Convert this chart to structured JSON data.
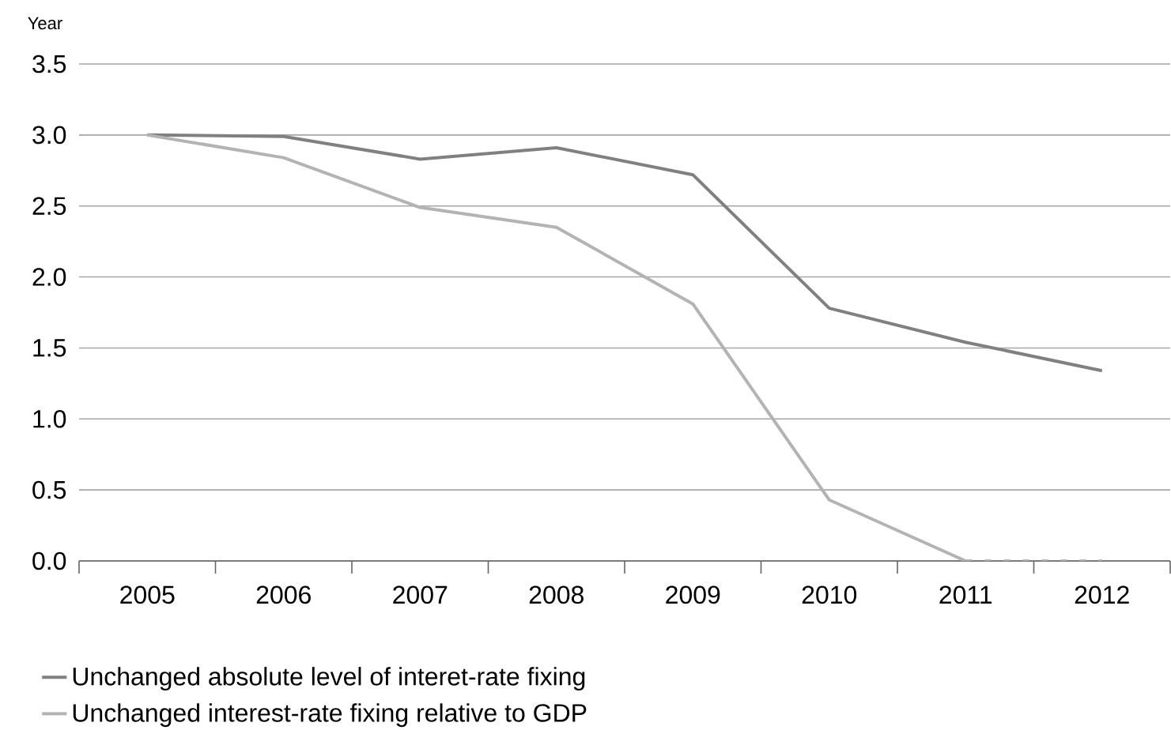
{
  "chart_data": {
    "type": "line",
    "ylabel": "Year",
    "categories": [
      "2005",
      "2006",
      "2007",
      "2008",
      "2009",
      "2010",
      "2011",
      "2012"
    ],
    "series": [
      {
        "name": "Unchanged absolute level of interet-rate fixing",
        "color": "#808080",
        "values": [
          3.0,
          2.99,
          2.83,
          2.91,
          2.72,
          1.78,
          1.54,
          1.34
        ]
      },
      {
        "name": "Unchanged interest-rate fixing relative to GDP",
        "color": "#b3b3b3",
        "values": [
          3.0,
          2.84,
          2.49,
          2.35,
          1.81,
          0.43,
          0.0,
          null
        ]
      },
      {
        "color": "#b3b3b3",
        "line_style": "dashed",
        "values": [
          null,
          null,
          null,
          null,
          null,
          null,
          0.0,
          0.0
        ]
      }
    ],
    "ylim": [
      0,
      3.5
    ],
    "yticks": [
      {
        "value": 0,
        "label": "0.0"
      },
      {
        "value": 0.5,
        "label": "0.5"
      },
      {
        "value": 1,
        "label": "1.0"
      },
      {
        "value": 1.5,
        "label": "1.5"
      },
      {
        "value": 2,
        "label": "2.0"
      },
      {
        "value": 2.5,
        "label": "2.5"
      },
      {
        "value": 3,
        "label": "3.0"
      },
      {
        "value": 3.5,
        "label": "3.5"
      }
    ],
    "grid": "y",
    "legend": "bottom",
    "marker": "none",
    "line_style": "solid"
  }
}
